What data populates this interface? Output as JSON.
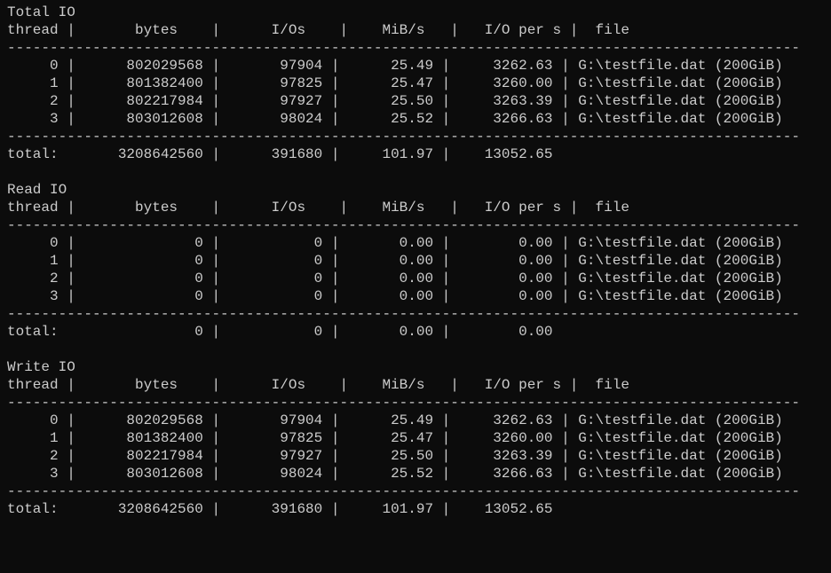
{
  "colors": {
    "background": "#0c0c0c",
    "text": "#cccccc"
  },
  "typography": {
    "font_family": "Consolas, monospace",
    "font_size_pt": 12
  },
  "layout": {
    "col_widths": {
      "thread": 6,
      "bytes": 15,
      "ios": 12,
      "mibs": 11,
      "iops": 12,
      "file": 0
    }
  },
  "sections": [
    {
      "title": "Total IO",
      "header": {
        "thread": "thread",
        "bytes": "bytes",
        "ios": "I/Os",
        "mibs": "MiB/s",
        "iops": "I/O per s",
        "file": "file"
      },
      "rows": [
        {
          "thread": "0",
          "bytes": "802029568",
          "ios": "97904",
          "mibs": "25.49",
          "iops": "3262.63",
          "file": "G:\\testfile.dat (200GiB)"
        },
        {
          "thread": "1",
          "bytes": "801382400",
          "ios": "97825",
          "mibs": "25.47",
          "iops": "3260.00",
          "file": "G:\\testfile.dat (200GiB)"
        },
        {
          "thread": "2",
          "bytes": "802217984",
          "ios": "97927",
          "mibs": "25.50",
          "iops": "3263.39",
          "file": "G:\\testfile.dat (200GiB)"
        },
        {
          "thread": "3",
          "bytes": "803012608",
          "ios": "98024",
          "mibs": "25.52",
          "iops": "3266.63",
          "file": "G:\\testfile.dat (200GiB)"
        }
      ],
      "total": {
        "label": "total:",
        "bytes": "3208642560",
        "ios": "391680",
        "mibs": "101.97",
        "iops": "13052.65"
      }
    },
    {
      "title": "Read IO",
      "header": {
        "thread": "thread",
        "bytes": "bytes",
        "ios": "I/Os",
        "mibs": "MiB/s",
        "iops": "I/O per s",
        "file": "file"
      },
      "rows": [
        {
          "thread": "0",
          "bytes": "0",
          "ios": "0",
          "mibs": "0.00",
          "iops": "0.00",
          "file": "G:\\testfile.dat (200GiB)"
        },
        {
          "thread": "1",
          "bytes": "0",
          "ios": "0",
          "mibs": "0.00",
          "iops": "0.00",
          "file": "G:\\testfile.dat (200GiB)"
        },
        {
          "thread": "2",
          "bytes": "0",
          "ios": "0",
          "mibs": "0.00",
          "iops": "0.00",
          "file": "G:\\testfile.dat (200GiB)"
        },
        {
          "thread": "3",
          "bytes": "0",
          "ios": "0",
          "mibs": "0.00",
          "iops": "0.00",
          "file": "G:\\testfile.dat (200GiB)"
        }
      ],
      "total": {
        "label": "total:",
        "bytes": "0",
        "ios": "0",
        "mibs": "0.00",
        "iops": "0.00"
      }
    },
    {
      "title": "Write IO",
      "header": {
        "thread": "thread",
        "bytes": "bytes",
        "ios": "I/Os",
        "mibs": "MiB/s",
        "iops": "I/O per s",
        "file": "file"
      },
      "rows": [
        {
          "thread": "0",
          "bytes": "802029568",
          "ios": "97904",
          "mibs": "25.49",
          "iops": "3262.63",
          "file": "G:\\testfile.dat (200GiB)"
        },
        {
          "thread": "1",
          "bytes": "801382400",
          "ios": "97825",
          "mibs": "25.47",
          "iops": "3260.00",
          "file": "G:\\testfile.dat (200GiB)"
        },
        {
          "thread": "2",
          "bytes": "802217984",
          "ios": "97927",
          "mibs": "25.50",
          "iops": "3263.39",
          "file": "G:\\testfile.dat (200GiB)"
        },
        {
          "thread": "3",
          "bytes": "803012608",
          "ios": "98024",
          "mibs": "25.52",
          "iops": "3266.63",
          "file": "G:\\testfile.dat (200GiB)"
        }
      ],
      "total": {
        "label": "total:",
        "bytes": "3208642560",
        "ios": "391680",
        "mibs": "101.97",
        "iops": "13052.65"
      }
    }
  ]
}
